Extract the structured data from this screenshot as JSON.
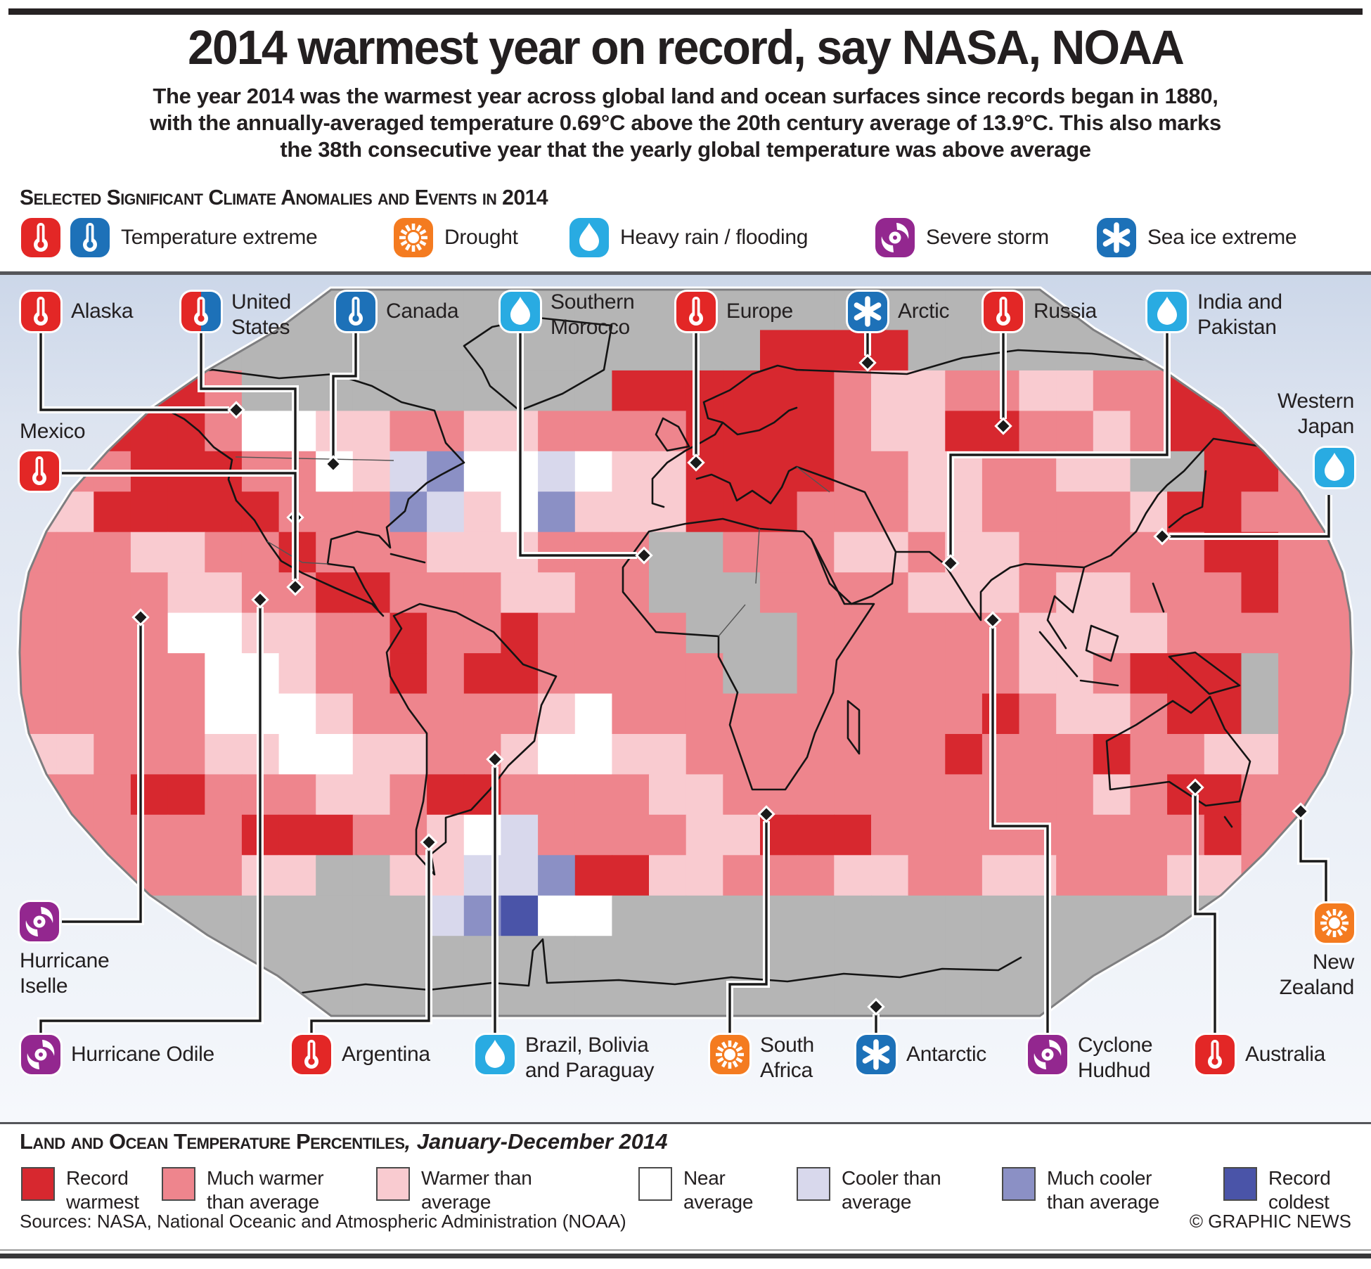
{
  "title": "2014 warmest year on record, say NASA, NOAA",
  "subtitle": "The year 2014 was the warmest year across global land and ocean surfaces since records began in 1880, with the annually-averaged temperature 0.69°C above the 20th century average of 13.9°C. This also marks the 38th consecutive year that the yearly global temperature was above average",
  "section_heading": "Selected Significant Climate Anomalies and Events in 2014",
  "event_legend": [
    {
      "id": "temperature-extreme",
      "label": "Temperature extreme",
      "icons": [
        {
          "type": "therm",
          "color": "red",
          "name": "thermometer-red-icon"
        },
        {
          "type": "therm",
          "color": "blue",
          "name": "thermometer-blue-icon"
        }
      ]
    },
    {
      "id": "drought",
      "label": "Drought",
      "icons": [
        {
          "type": "sun",
          "color": "orange",
          "name": "drought-sun-icon"
        }
      ]
    },
    {
      "id": "heavy-rain",
      "label": "Heavy rain / flooding",
      "icons": [
        {
          "type": "drop",
          "color": "cyan",
          "name": "rain-droplet-icon"
        }
      ]
    },
    {
      "id": "severe-storm",
      "label": "Severe storm",
      "icons": [
        {
          "type": "storm",
          "color": "purple",
          "name": "storm-icon"
        }
      ]
    },
    {
      "id": "sea-ice",
      "label": "Sea ice extreme",
      "icons": [
        {
          "type": "ice",
          "color": "blue",
          "name": "sea-ice-icon"
        }
      ]
    }
  ],
  "callouts": [
    {
      "id": "alaska",
      "label": "Alaska",
      "icon": "therm",
      "color": "red"
    },
    {
      "id": "united-states",
      "label": "United\nStates",
      "icon": "therm",
      "color": "split"
    },
    {
      "id": "canada",
      "label": "Canada",
      "icon": "therm",
      "color": "blue"
    },
    {
      "id": "southern-morocco",
      "label": "Southern\nMorocco",
      "icon": "drop",
      "color": "cyan"
    },
    {
      "id": "europe",
      "label": "Europe",
      "icon": "therm",
      "color": "red"
    },
    {
      "id": "arctic",
      "label": "Arctic",
      "icon": "ice",
      "color": "blue"
    },
    {
      "id": "russia",
      "label": "Russia",
      "icon": "therm",
      "color": "red"
    },
    {
      "id": "india-pakistan",
      "label": "India and\nPakistan",
      "icon": "drop",
      "color": "cyan"
    },
    {
      "id": "western-japan",
      "label": "Western\nJapan",
      "icon": "drop",
      "color": "cyan"
    },
    {
      "id": "mexico",
      "label": "Mexico",
      "icon": "therm",
      "color": "red"
    },
    {
      "id": "hurricane-iselle",
      "label": "Hurricane\nIselle",
      "icon": "storm",
      "color": "purple"
    },
    {
      "id": "hurricane-odile",
      "label": "Hurricane Odile",
      "icon": "storm",
      "color": "purple"
    },
    {
      "id": "argentina",
      "label": "Argentina",
      "icon": "therm",
      "color": "red"
    },
    {
      "id": "brazil-bolivia-paraguay",
      "label": "Brazil, Bolivia\nand Paraguay",
      "icon": "drop",
      "color": "cyan"
    },
    {
      "id": "south-africa",
      "label": "South\nAfrica",
      "icon": "sun",
      "color": "orange"
    },
    {
      "id": "antarctic",
      "label": "Antarctic",
      "icon": "ice",
      "color": "blue"
    },
    {
      "id": "cyclone-hudhud",
      "label": "Cyclone\nHudhud",
      "icon": "storm",
      "color": "purple"
    },
    {
      "id": "australia",
      "label": "Australia",
      "icon": "therm",
      "color": "red"
    },
    {
      "id": "new-zealand",
      "label": "New\nZealand",
      "icon": "sun",
      "color": "orange"
    }
  ],
  "percentile_legend": {
    "heading": "Land and Ocean Temperature Percentiles",
    "heading_suffix": ", January-December 2014",
    "items": [
      {
        "label": "Record\nwarmest",
        "color": "#d7282f"
      },
      {
        "label": "Much warmer\nthan average",
        "color": "#ee858d"
      },
      {
        "label": "Warmer than\naverage",
        "color": "#f9cbd0"
      },
      {
        "label": "Near\naverage",
        "color": "#ffffff"
      },
      {
        "label": "Cooler than\naverage",
        "color": "#d8d8ec"
      },
      {
        "label": "Much cooler\nthan average",
        "color": "#8b90c5"
      },
      {
        "label": "Record\ncoldest",
        "color": "#4a54a8"
      }
    ]
  },
  "footer": {
    "sources": "Sources: NASA, National Oceanic and Atmospheric Administration (NOAA)",
    "credit": "© GRAPHIC NEWS"
  },
  "colors": {
    "icon_red": "#e32726",
    "icon_blue": "#1d71b8",
    "icon_cyan": "#29abe2",
    "icon_purple": "#93278f",
    "icon_orange": "#f47b20",
    "top_bar": "#262223",
    "rule_gray": "#55565a",
    "no_data_gray": "#b5b5b5",
    "panel_top": "#ccd7e9",
    "panel_bottom": "#f6f8fc",
    "leader": "#1a1a1a"
  },
  "map": {
    "palette": {
      "R": "#d7282f",
      "M": "#ee858d",
      "W": "#f9cbd0",
      "N": "#ffffff",
      "C": "#d8d8ec",
      "X": "#8b90c5",
      "B": "#4a54a8",
      "G": "#b5b5b5"
    },
    "palette_meaning": {
      "R": "Record warmest",
      "M": "Much warmer than average",
      "W": "Warmer than average",
      "N": "Near average",
      "C": "Cooler than average",
      "X": "Much cooler than average",
      "B": "Record coldest",
      "G": "No data"
    },
    "grid": [
      "GGGGGGGGGGGGGGGGGGGGGGGGGGGGGGGGGGGG",
      "GGGGGGGGGGGGGGGGGGGGRRRRGGGGGGGGGGGG",
      "GGRRRMGGGGGGGGGGRRRRRRMWWMMWWMMRRMMG",
      "MMRRRMNNWWMMWWMMMMRRRRMWWRRMMWMRRRMM",
      "MMMRRRMMNWCXNNCNWWRRRRMMWWMMWWGGRRMM",
      "WWRRRRRMMMXCWNXWWWRRRMMMWWMMMMWRRMMM",
      "MMMWWMMRMMMWWWMMMGGMMMWWMWWMMMMMRRMM",
      "MMMMWWMMRRMMMWWMMGGGMMMMWWWMWWMMMRMM",
      "MMMMNNWWMMRMMRMMMMGGGMMMMMMWWWWMMMMM",
      "MMMMMNNWMMRMRRMMMMMGGMMMMMMWWMRRRGMM",
      "MMMMMNNNWMMMMMWNMMMMMMMMMMRMWWMRRGMM",
      "WWMMMWWNNWWMMWNNWWMMMMMMMRMMMRMMWWMM",
      "MMMRRMMMWWMRRMMMMWWMMMMMMMMMMWMRRMMM",
      "MMMMMMRRRMMWNCMMMMWWRRRMMMMMMMMMRMMM",
      "WMMMMMWWGGWWCCXRRWWMMMWWMMWWMMMWWMMG",
      "GGGGGGGGGGGCXBNNGGGGGGGGGGGGGGGGGGGG",
      "GGGGGGGGGGGGGGGGGGGGGGGGGGGGGGGGGGGG",
      "GGGGGGGGGGGGGGGGGGGGGGGGGGGGGGGGGGGG"
    ]
  }
}
